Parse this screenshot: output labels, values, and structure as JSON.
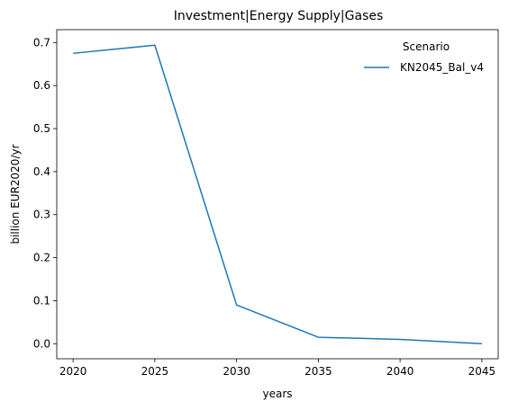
{
  "chart_data": {
    "type": "line",
    "title": "Investment|Energy Supply|Gases",
    "xlabel": "years",
    "ylabel": "billion EUR2020/yr",
    "x": [
      2020,
      2025,
      2030,
      2035,
      2040,
      2045
    ],
    "xticks": [
      "2020",
      "2025",
      "2030",
      "2035",
      "2040",
      "2045"
    ],
    "yticks": [
      "0.0",
      "0.1",
      "0.2",
      "0.3",
      "0.4",
      "0.5",
      "0.6",
      "0.7"
    ],
    "ylim": [
      -0.035,
      0.73
    ],
    "xlim": [
      2019,
      2046
    ],
    "grid": false,
    "legend": {
      "title": "Scenario",
      "placement": "top-right"
    },
    "series": [
      {
        "name": "KN2045_Bal_v4",
        "color": "#1f77b4",
        "values": [
          0.675,
          0.694,
          0.09,
          0.015,
          0.01,
          0.0
        ]
      }
    ]
  }
}
